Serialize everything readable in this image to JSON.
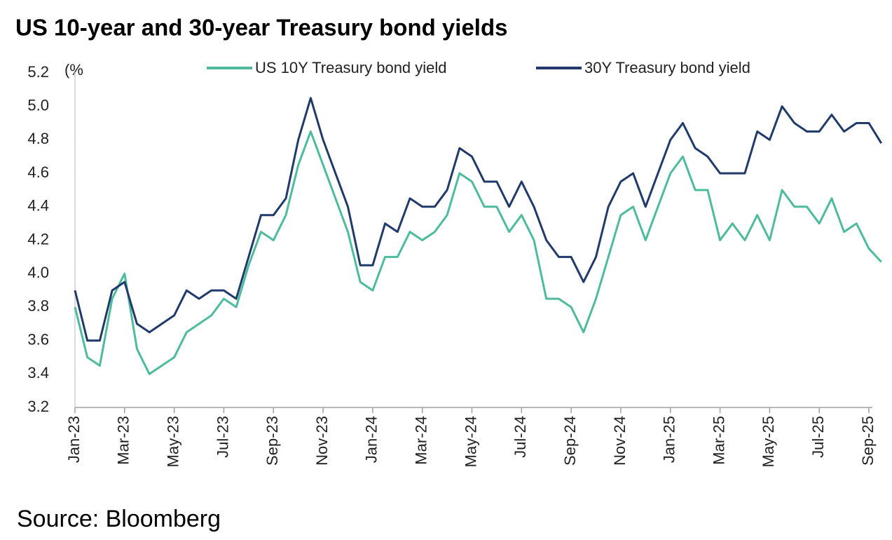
{
  "chart_data": {
    "type": "line",
    "title": "US 10-year and 30-year Treasury bond yields",
    "y_label": "(%",
    "source": "Source: Bloomberg",
    "categories": [
      "Jan-23",
      null,
      null,
      null,
      "Mar-23",
      null,
      null,
      null,
      "May-23",
      null,
      null,
      null,
      "Jul-23",
      null,
      null,
      null,
      "Sep-23",
      null,
      null,
      null,
      "Nov-23",
      null,
      null,
      null,
      "Jan-24",
      null,
      null,
      null,
      "Mar-24",
      null,
      null,
      null,
      "May-24",
      null,
      null,
      null,
      "Jul-24",
      null,
      null,
      null,
      "Sep-24",
      null,
      null,
      null,
      "Nov-24",
      null,
      null,
      null,
      "Jan-25",
      null,
      null,
      null,
      "Mar-25",
      null,
      null,
      null,
      "May-25",
      null,
      null,
      null,
      "Jul-25",
      null,
      null,
      null,
      "Sep-25",
      null
    ],
    "series": [
      {
        "name": "US 10Y Treasury bond yield",
        "color": "#4dbb9c",
        "values": [
          3.8,
          3.5,
          3.45,
          3.85,
          4.0,
          3.55,
          3.4,
          3.45,
          3.5,
          3.65,
          3.7,
          3.75,
          3.85,
          3.8,
          4.05,
          4.25,
          4.2,
          4.35,
          4.65,
          4.85,
          4.65,
          4.45,
          4.25,
          3.95,
          3.9,
          4.1,
          4.1,
          4.25,
          4.2,
          4.25,
          4.35,
          4.6,
          4.55,
          4.4,
          4.4,
          4.25,
          4.35,
          4.2,
          3.85,
          3.85,
          3.8,
          3.65,
          3.85,
          4.1,
          4.35,
          4.4,
          4.2,
          4.4,
          4.6,
          4.7,
          4.5,
          4.5,
          4.2,
          4.3,
          4.2,
          4.35,
          4.2,
          4.5,
          4.4,
          4.4,
          4.3,
          4.45,
          4.25,
          4.3,
          4.15,
          4.07
        ]
      },
      {
        "name": "30Y Treasury bond yield",
        "color": "#1f3a6b",
        "values": [
          3.9,
          3.6,
          3.6,
          3.9,
          3.95,
          3.7,
          3.65,
          3.7,
          3.75,
          3.9,
          3.85,
          3.9,
          3.9,
          3.85,
          4.1,
          4.35,
          4.35,
          4.45,
          4.8,
          5.05,
          4.8,
          4.6,
          4.4,
          4.05,
          4.05,
          4.3,
          4.25,
          4.45,
          4.4,
          4.4,
          4.5,
          4.75,
          4.7,
          4.55,
          4.55,
          4.4,
          4.55,
          4.4,
          4.2,
          4.1,
          4.1,
          3.95,
          4.1,
          4.4,
          4.55,
          4.6,
          4.4,
          4.6,
          4.8,
          4.9,
          4.75,
          4.7,
          4.6,
          4.6,
          4.6,
          4.85,
          4.8,
          5.0,
          4.9,
          4.85,
          4.85,
          4.95,
          4.85,
          4.9,
          4.9,
          4.78
        ]
      }
    ],
    "ylim": [
      3.2,
      5.2
    ],
    "yticks": [
      3.2,
      3.4,
      3.6,
      3.8,
      {
        "value": 4,
        "label": "4.0"
      },
      4.2,
      4.4,
      4.6,
      4.8,
      {
        "value": 5,
        "label": "5.0"
      },
      5.2
    ],
    "grid": false,
    "legend": "top"
  }
}
